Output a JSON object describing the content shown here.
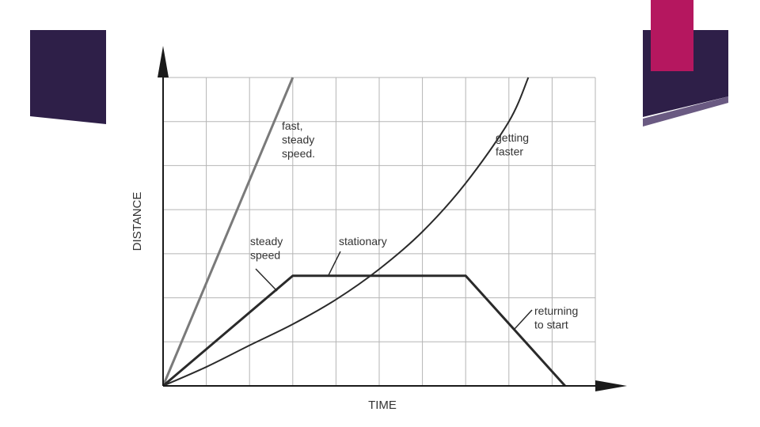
{
  "colors": {
    "deco_dark": "#2e1f48",
    "deco_accent": "#b5175f",
    "deco_strip": "#6a5a82",
    "grid": "#b5b5b5",
    "axis": "#1a1a1a",
    "line_light": "#7a7a7a",
    "line_dark": "#2a2a2a",
    "text": "#333333"
  },
  "chart_data": {
    "type": "line",
    "title": "",
    "xlabel": "TIME",
    "ylabel": "DISTANCE",
    "xlim": [
      0,
      10
    ],
    "ylim": [
      0,
      7
    ],
    "grid": true,
    "series": [
      {
        "key": "fast",
        "points": [
          [
            0,
            0
          ],
          [
            3,
            7
          ]
        ]
      },
      {
        "key": "journey",
        "points": [
          [
            0,
            0
          ],
          [
            3,
            2.5
          ],
          [
            7,
            2.5
          ],
          [
            9.3,
            0
          ]
        ]
      },
      {
        "key": "accel",
        "points": [
          [
            0,
            0
          ],
          [
            1,
            0.43
          ],
          [
            2,
            0.92
          ],
          [
            3,
            1.4
          ],
          [
            4,
            1.96
          ],
          [
            5,
            2.65
          ],
          [
            6,
            3.5
          ],
          [
            7,
            4.6
          ],
          [
            8,
            6.0
          ],
          [
            8.45,
            7.0
          ]
        ]
      }
    ],
    "annotations": {
      "fast": "fast,\nsteady\nspeed.",
      "getting_faster": "getting\nfaster",
      "steady": "steady\nspeed",
      "stationary": "stationary",
      "returning": "returning\nto start"
    }
  }
}
